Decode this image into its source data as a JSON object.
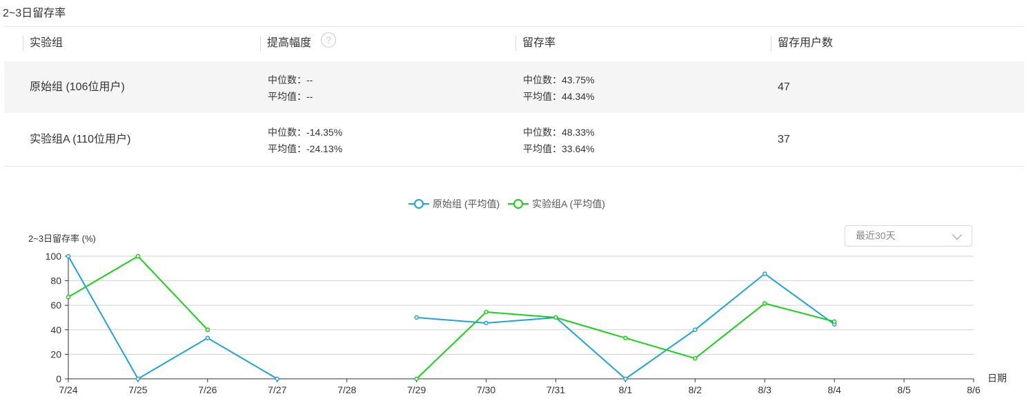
{
  "page": {
    "title": "2~3日留存率"
  },
  "table": {
    "headers": [
      "实验组",
      "提高幅度",
      "留存率",
      "留存用户数"
    ],
    "help_icon": "?",
    "median_label": "中位数：",
    "mean_label": "平均值：",
    "rows": [
      {
        "name": "原始组 (106位用户)",
        "lift_median": "--",
        "lift_mean": "--",
        "rate_median": "43.75%",
        "rate_mean": "44.34%",
        "count": "47"
      },
      {
        "name": "实验组A (110位用户)",
        "lift_median": "-14.35%",
        "lift_mean": "-24.13%",
        "rate_median": "48.33%",
        "rate_mean": "33.64%",
        "count": "37"
      }
    ]
  },
  "range_select": {
    "value": "最近30天"
  },
  "chart_data": {
    "type": "line",
    "ylabel": "2~3日留存率 (%)",
    "xlabel": "日期",
    "ylim": [
      0,
      100
    ],
    "yticks": [
      0,
      20,
      40,
      60,
      80,
      100
    ],
    "categories": [
      "7/24",
      "7/25",
      "7/26",
      "7/27",
      "7/28",
      "7/29",
      "7/30",
      "7/31",
      "8/1",
      "8/2",
      "8/3",
      "8/4",
      "8/5",
      "8/6"
    ],
    "grid": true,
    "legend_position": "top-center",
    "series": [
      {
        "name": "原始组 (平均值)",
        "color": "#1ba1e2",
        "values": [
          100,
          0,
          33.3,
          0,
          null,
          50,
          45.5,
          50,
          0,
          40,
          85.7,
          44.4,
          null,
          null
        ]
      },
      {
        "name": "实验组A (平均值)",
        "color": "#16d116",
        "values": [
          66.7,
          100,
          40,
          null,
          null,
          0,
          54.5,
          50,
          33.3,
          16.7,
          61.5,
          46.7,
          null,
          null
        ]
      }
    ]
  }
}
